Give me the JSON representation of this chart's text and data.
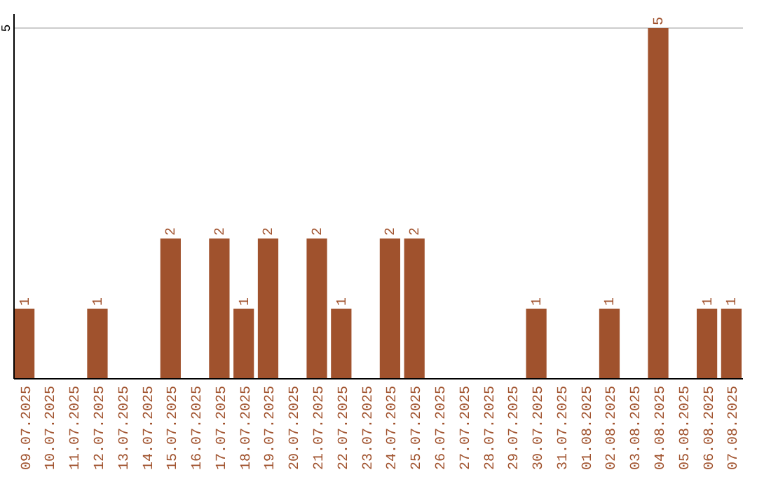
{
  "chart_data": {
    "type": "bar",
    "categories": [
      "09.07.2025",
      "10.07.2025",
      "11.07.2025",
      "12.07.2025",
      "13.07.2025",
      "14.07.2025",
      "15.07.2025",
      "16.07.2025",
      "17.07.2025",
      "18.07.2025",
      "19.07.2025",
      "20.07.2025",
      "21.07.2025",
      "22.07.2025",
      "23.07.2025",
      "24.07.2025",
      "25.07.2025",
      "26.07.2025",
      "27.07.2025",
      "28.07.2025",
      "29.07.2025",
      "30.07.2025",
      "31.07.2025",
      "01.08.2025",
      "02.08.2025",
      "03.08.2025",
      "04.08.2025",
      "05.08.2025",
      "06.08.2025",
      "07.08.2025"
    ],
    "values": [
      1,
      0,
      0,
      1,
      0,
      0,
      2,
      0,
      2,
      1,
      2,
      0,
      2,
      1,
      0,
      2,
      2,
      0,
      0,
      0,
      0,
      1,
      0,
      0,
      1,
      0,
      5,
      0,
      1,
      1
    ],
    "value_labels": [
      "1",
      null,
      null,
      "1",
      null,
      null,
      "2",
      null,
      "2",
      "1",
      "2",
      null,
      "2",
      "1",
      null,
      "2",
      "2",
      null,
      null,
      null,
      null,
      "1",
      null,
      null,
      "1",
      null,
      "5",
      null,
      "1",
      "1"
    ],
    "color": "#a0522d",
    "ylim": [
      0,
      5.2
    ],
    "yticks": [
      5
    ],
    "grid": "y"
  }
}
